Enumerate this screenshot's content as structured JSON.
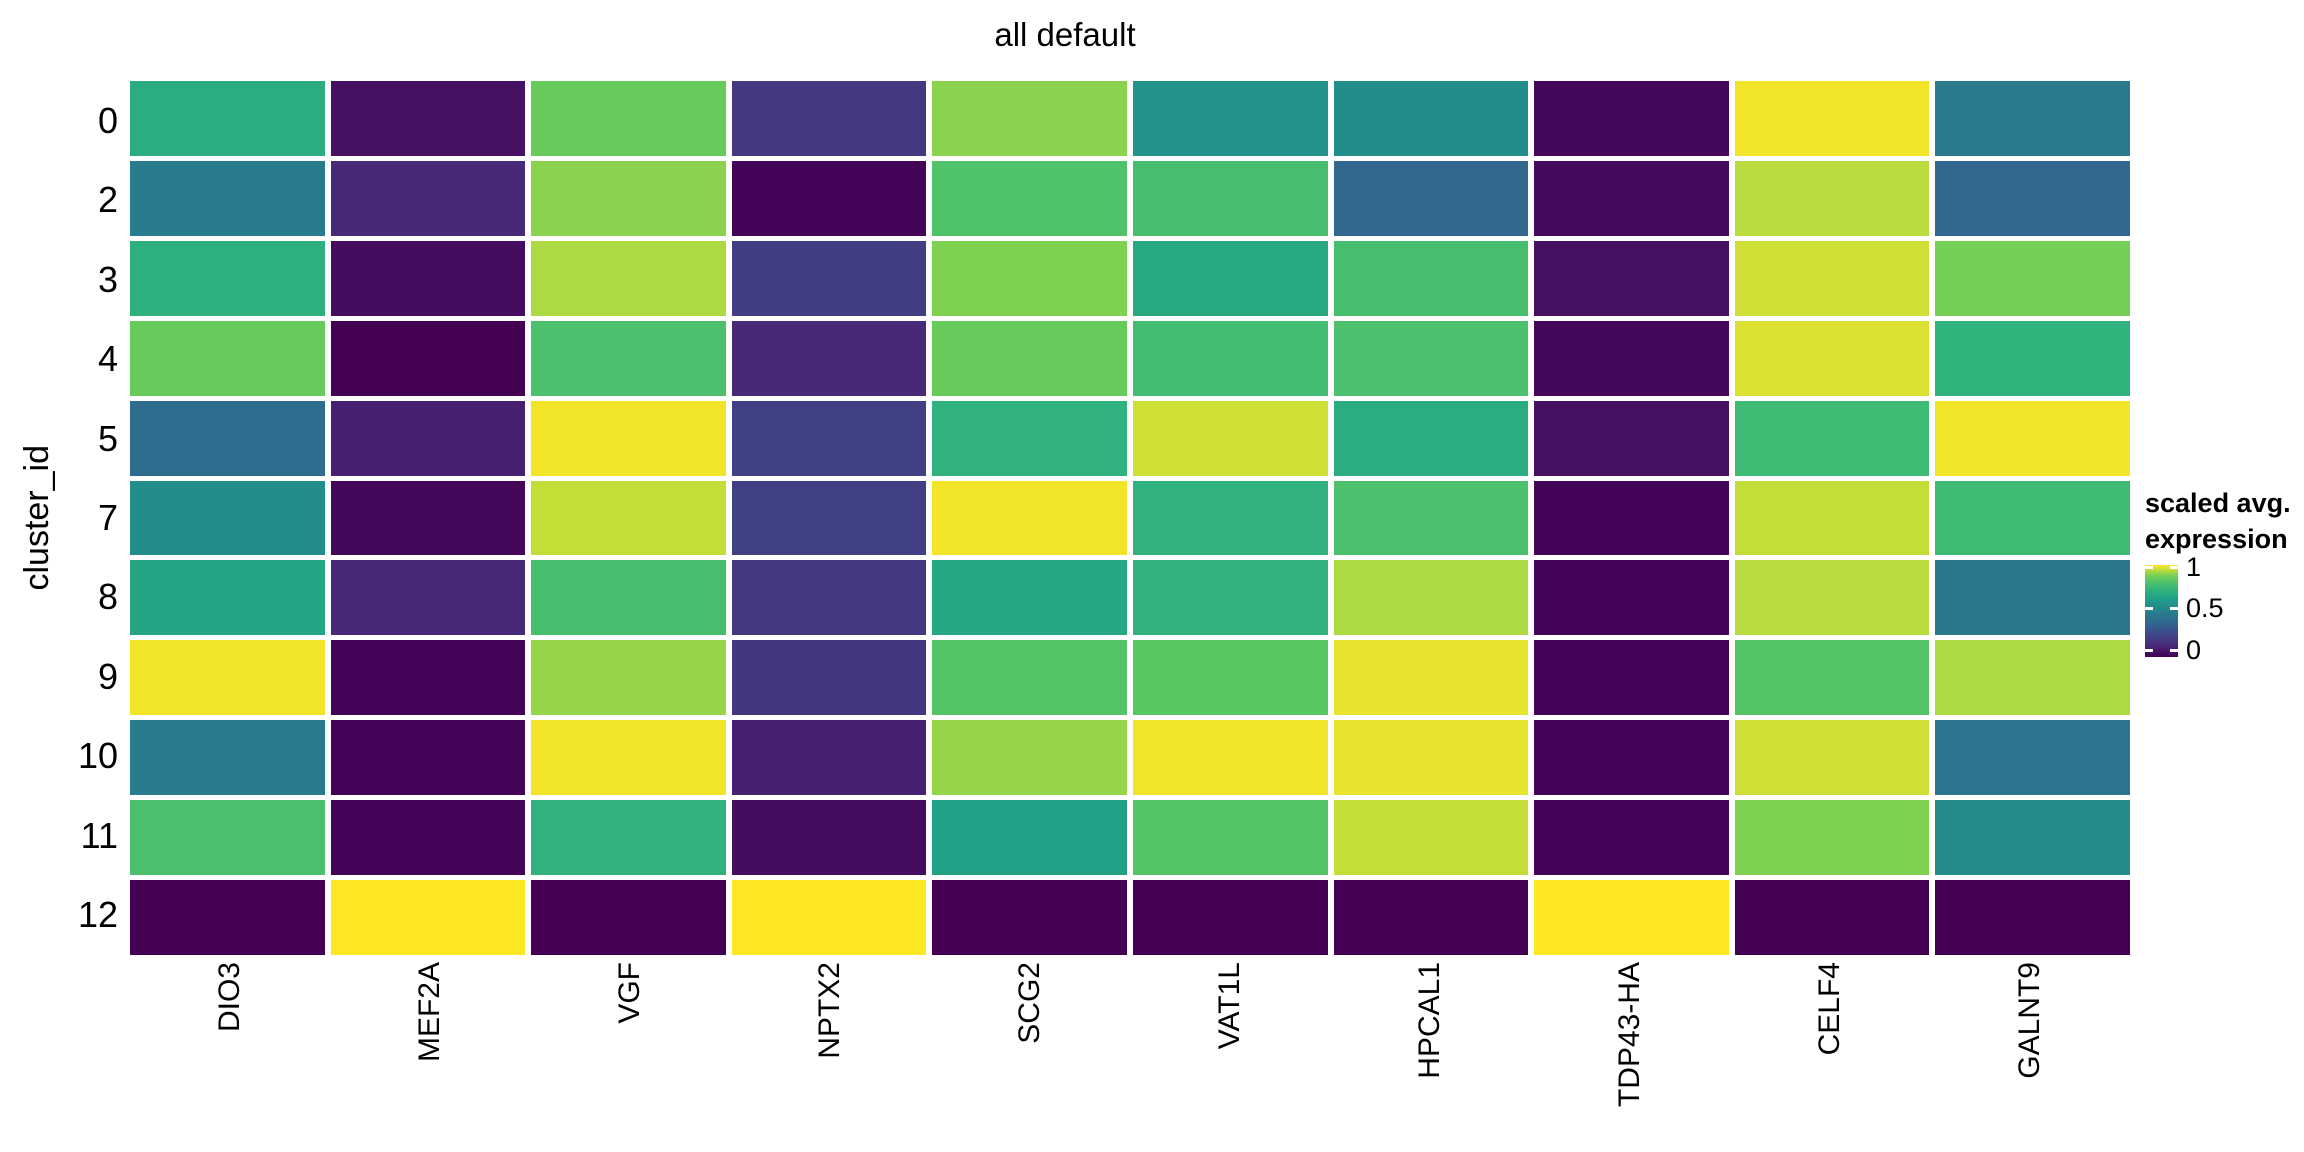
{
  "title": "all default",
  "y_axis": {
    "label": "cluster_id",
    "ticks": [
      "0",
      "2",
      "3",
      "4",
      "5",
      "7",
      "8",
      "9",
      "10",
      "11",
      "12"
    ]
  },
  "x_axis": {
    "ticks": [
      "DIO3",
      "MEF2A",
      "VGF",
      "NPTX2",
      "SCG2",
      "VAT1L",
      "HPCAL1",
      "TDP43-HA",
      "CELF4",
      "GALNT9"
    ]
  },
  "legend": {
    "title_line1": "scaled avg.",
    "title_line2": "expression",
    "tick_labels": [
      "1",
      "0.5",
      "0"
    ],
    "tick_values": [
      1,
      0.5,
      0
    ]
  },
  "colors": {
    "background": "#ffffff",
    "text": "#000000",
    "colormap_low": "#440154",
    "colormap_mid": "#26828e",
    "colormap_high": "#fde725"
  },
  "chart_data": {
    "type": "heatmap",
    "title": "all default",
    "xlabel": "",
    "ylabel": "cluster_id",
    "x_categories": [
      "DIO3",
      "MEF2A",
      "VGF",
      "NPTX2",
      "SCG2",
      "VAT1L",
      "HPCAL1",
      "TDP43-HA",
      "CELF4",
      "GALNT9"
    ],
    "y_categories": [
      "0",
      "2",
      "3",
      "4",
      "5",
      "7",
      "8",
      "9",
      "10",
      "11",
      "12"
    ],
    "colormap": "viridis",
    "color_range": [
      0,
      1
    ],
    "legend_title": "scaled avg. expression",
    "grid": false,
    "values": [
      [
        0.7,
        0.05,
        0.86,
        0.19,
        0.9,
        0.58,
        0.55,
        0.02,
        0.99,
        0.46
      ],
      [
        0.47,
        0.13,
        0.9,
        0.01,
        0.81,
        0.79,
        0.37,
        0.03,
        0.94,
        0.37
      ],
      [
        0.71,
        0.04,
        0.93,
        0.21,
        0.89,
        0.68,
        0.79,
        0.05,
        0.96,
        0.88
      ],
      [
        0.86,
        0.0,
        0.8,
        0.13,
        0.86,
        0.78,
        0.8,
        0.02,
        0.97,
        0.73
      ],
      [
        0.4,
        0.1,
        0.99,
        0.22,
        0.72,
        0.96,
        0.7,
        0.05,
        0.77,
        0.99
      ],
      [
        0.55,
        0.02,
        0.95,
        0.22,
        0.99,
        0.72,
        0.8,
        0.01,
        0.95,
        0.77
      ],
      [
        0.66,
        0.13,
        0.79,
        0.19,
        0.67,
        0.72,
        0.93,
        0.01,
        0.94,
        0.45
      ],
      [
        0.99,
        0.01,
        0.91,
        0.18,
        0.82,
        0.83,
        0.98,
        0.01,
        0.82,
        0.93
      ],
      [
        0.47,
        0.01,
        0.99,
        0.1,
        0.91,
        0.99,
        0.98,
        0.01,
        0.96,
        0.44
      ],
      [
        0.8,
        0.01,
        0.72,
        0.04,
        0.64,
        0.82,
        0.95,
        0.01,
        0.89,
        0.54
      ],
      [
        0.0,
        1.0,
        0.0,
        1.0,
        0.0,
        0.0,
        0.0,
        1.0,
        0.0,
        0.0
      ]
    ]
  }
}
